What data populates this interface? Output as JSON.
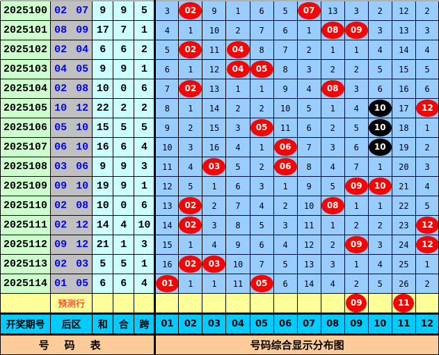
{
  "rows": [
    {
      "issue": "2025100",
      "back": "02 07",
      "sum": "9",
      "he": "9",
      "span": "5",
      "cells": [
        {
          "v": "3"
        },
        {
          "v": "02",
          "hit": "red"
        },
        {
          "v": "9"
        },
        {
          "v": "1"
        },
        {
          "v": "6"
        },
        {
          "v": "5"
        },
        {
          "v": "07",
          "hit": "red"
        },
        {
          "v": "13"
        },
        {
          "v": "3"
        },
        {
          "v": "2"
        },
        {
          "v": "12"
        },
        {
          "v": "2"
        }
      ]
    },
    {
      "issue": "2025101",
      "back": "08 09",
      "sum": "17",
      "he": "7",
      "span": "1",
      "cells": [
        {
          "v": "4"
        },
        {
          "v": "1"
        },
        {
          "v": "10"
        },
        {
          "v": "2"
        },
        {
          "v": "7"
        },
        {
          "v": "6"
        },
        {
          "v": "1"
        },
        {
          "v": "08",
          "hit": "red"
        },
        {
          "v": "09",
          "hit": "red"
        },
        {
          "v": "3"
        },
        {
          "v": "13"
        },
        {
          "v": "3"
        }
      ]
    },
    {
      "issue": "2025102",
      "back": "02 04",
      "sum": "6",
      "he": "6",
      "span": "2",
      "cells": [
        {
          "v": "5"
        },
        {
          "v": "02",
          "hit": "red"
        },
        {
          "v": "11"
        },
        {
          "v": "04",
          "hit": "red"
        },
        {
          "v": "8"
        },
        {
          "v": "7"
        },
        {
          "v": "2"
        },
        {
          "v": "1"
        },
        {
          "v": "1"
        },
        {
          "v": "4"
        },
        {
          "v": "14"
        },
        {
          "v": "4"
        }
      ]
    },
    {
      "issue": "2025103",
      "back": "04 05",
      "sum": "9",
      "he": "9",
      "span": "1",
      "cells": [
        {
          "v": "6"
        },
        {
          "v": "1"
        },
        {
          "v": "12"
        },
        {
          "v": "04",
          "hit": "red"
        },
        {
          "v": "05",
          "hit": "red"
        },
        {
          "v": "8"
        },
        {
          "v": "3"
        },
        {
          "v": "2"
        },
        {
          "v": "2"
        },
        {
          "v": "5"
        },
        {
          "v": "15"
        },
        {
          "v": "5"
        }
      ]
    },
    {
      "issue": "2025104",
      "back": "02 08",
      "sum": "10",
      "he": "0",
      "span": "6",
      "cells": [
        {
          "v": "7"
        },
        {
          "v": "02",
          "hit": "red"
        },
        {
          "v": "13"
        },
        {
          "v": "1"
        },
        {
          "v": "1"
        },
        {
          "v": "9"
        },
        {
          "v": "4"
        },
        {
          "v": "08",
          "hit": "red"
        },
        {
          "v": "3"
        },
        {
          "v": "6"
        },
        {
          "v": "16"
        },
        {
          "v": "6"
        }
      ]
    },
    {
      "issue": "2025105",
      "back": "10 12",
      "sum": "22",
      "he": "2",
      "span": "2",
      "cells": [
        {
          "v": "8"
        },
        {
          "v": "1"
        },
        {
          "v": "14"
        },
        {
          "v": "2"
        },
        {
          "v": "2"
        },
        {
          "v": "10"
        },
        {
          "v": "5"
        },
        {
          "v": "1"
        },
        {
          "v": "4"
        },
        {
          "v": "10",
          "hit": "black"
        },
        {
          "v": "17"
        },
        {
          "v": "12",
          "hit": "red"
        }
      ]
    },
    {
      "issue": "2025106",
      "back": "05 10",
      "sum": "15",
      "he": "5",
      "span": "5",
      "cells": [
        {
          "v": "9"
        },
        {
          "v": "2"
        },
        {
          "v": "15"
        },
        {
          "v": "3"
        },
        {
          "v": "05",
          "hit": "red"
        },
        {
          "v": "11"
        },
        {
          "v": "6"
        },
        {
          "v": "2"
        },
        {
          "v": "5"
        },
        {
          "v": "10",
          "hit": "black"
        },
        {
          "v": "18"
        },
        {
          "v": "1"
        }
      ]
    },
    {
      "issue": "2025107",
      "back": "06 10",
      "sum": "16",
      "he": "6",
      "span": "4",
      "cells": [
        {
          "v": "10"
        },
        {
          "v": "3"
        },
        {
          "v": "16"
        },
        {
          "v": "4"
        },
        {
          "v": "1"
        },
        {
          "v": "06",
          "hit": "red"
        },
        {
          "v": "7"
        },
        {
          "v": "3"
        },
        {
          "v": "6"
        },
        {
          "v": "10",
          "hit": "black"
        },
        {
          "v": "19"
        },
        {
          "v": "2"
        }
      ]
    },
    {
      "issue": "2025108",
      "back": "03 06",
      "sum": "9",
      "he": "9",
      "span": "3",
      "cells": [
        {
          "v": "11"
        },
        {
          "v": "4"
        },
        {
          "v": "03",
          "hit": "red"
        },
        {
          "v": "5"
        },
        {
          "v": "2"
        },
        {
          "v": "06",
          "hit": "red"
        },
        {
          "v": "8"
        },
        {
          "v": "4"
        },
        {
          "v": "7"
        },
        {
          "v": "1"
        },
        {
          "v": "20"
        },
        {
          "v": "3"
        }
      ]
    },
    {
      "issue": "2025109",
      "back": "09 10",
      "sum": "19",
      "he": "9",
      "span": "1",
      "cells": [
        {
          "v": "12"
        },
        {
          "v": "5"
        },
        {
          "v": "1"
        },
        {
          "v": "6"
        },
        {
          "v": "3"
        },
        {
          "v": "1"
        },
        {
          "v": "9"
        },
        {
          "v": "5"
        },
        {
          "v": "09",
          "hit": "red"
        },
        {
          "v": "10",
          "hit": "red"
        },
        {
          "v": "21"
        },
        {
          "v": "4"
        }
      ]
    },
    {
      "issue": "2025110",
      "back": "02 08",
      "sum": "10",
      "he": "0",
      "span": "6",
      "cells": [
        {
          "v": "13"
        },
        {
          "v": "02",
          "hit": "red"
        },
        {
          "v": "2"
        },
        {
          "v": "7"
        },
        {
          "v": "4"
        },
        {
          "v": "2"
        },
        {
          "v": "10"
        },
        {
          "v": "08",
          "hit": "red"
        },
        {
          "v": "1"
        },
        {
          "v": "1"
        },
        {
          "v": "22"
        },
        {
          "v": "5"
        }
      ]
    },
    {
      "issue": "2025111",
      "back": "02 12",
      "sum": "14",
      "he": "4",
      "span": "10",
      "cells": [
        {
          "v": "14"
        },
        {
          "v": "02",
          "hit": "red"
        },
        {
          "v": "3"
        },
        {
          "v": "8"
        },
        {
          "v": "5"
        },
        {
          "v": "3"
        },
        {
          "v": "11"
        },
        {
          "v": "1"
        },
        {
          "v": "2"
        },
        {
          "v": "2"
        },
        {
          "v": "23"
        },
        {
          "v": "12",
          "hit": "red"
        }
      ]
    },
    {
      "issue": "2025112",
      "back": "09 12",
      "sum": "21",
      "he": "1",
      "span": "3",
      "cells": [
        {
          "v": "15"
        },
        {
          "v": "1"
        },
        {
          "v": "4"
        },
        {
          "v": "9"
        },
        {
          "v": "6"
        },
        {
          "v": "4"
        },
        {
          "v": "12"
        },
        {
          "v": "2"
        },
        {
          "v": "09",
          "hit": "red"
        },
        {
          "v": "3"
        },
        {
          "v": "24"
        },
        {
          "v": "12",
          "hit": "red"
        }
      ]
    },
    {
      "issue": "2025113",
      "back": "02 03",
      "sum": "5",
      "he": "5",
      "span": "1",
      "cells": [
        {
          "v": "16"
        },
        {
          "v": "02",
          "hit": "red"
        },
        {
          "v": "03",
          "hit": "red"
        },
        {
          "v": "10"
        },
        {
          "v": "7"
        },
        {
          "v": "5"
        },
        {
          "v": "13"
        },
        {
          "v": "3"
        },
        {
          "v": "1"
        },
        {
          "v": "4"
        },
        {
          "v": "25"
        },
        {
          "v": "1"
        }
      ]
    },
    {
      "issue": "2025114",
      "back": "01 05",
      "sum": "6",
      "he": "6",
      "span": "4",
      "cells": [
        {
          "v": "01",
          "hit": "red"
        },
        {
          "v": "1"
        },
        {
          "v": "1"
        },
        {
          "v": "11"
        },
        {
          "v": "05",
          "hit": "red"
        },
        {
          "v": "6"
        },
        {
          "v": "14"
        },
        {
          "v": "4"
        },
        {
          "v": "2"
        },
        {
          "v": "5"
        },
        {
          "v": "26"
        },
        {
          "v": "2"
        }
      ]
    }
  ],
  "prediction": {
    "label": "预测行",
    "cells": [
      "",
      "",
      "",
      "",
      "",
      "",
      "",
      "",
      "09",
      "",
      "11",
      ""
    ]
  },
  "header": {
    "issue": "开奖期号",
    "back": "后区",
    "sum": "和",
    "he": "合",
    "span": "跨",
    "numbers": [
      "01",
      "02",
      "03",
      "04",
      "05",
      "06",
      "07",
      "08",
      "09",
      "10",
      "11",
      "12"
    ]
  },
  "footer": {
    "left": "号码表",
    "right": "号码综合显示分布图"
  },
  "colors": {
    "hit": "#ff0000",
    "repeat_hit": "#000000",
    "grid": "#99ccff",
    "issue_bg": "#ccffcc",
    "back_bg": "#c0c0c0",
    "stat_bg": "#ccffff",
    "header_bg": "#00ccff",
    "footer_bg": "#ffcc99",
    "prediction_bg": "#ffff99"
  }
}
